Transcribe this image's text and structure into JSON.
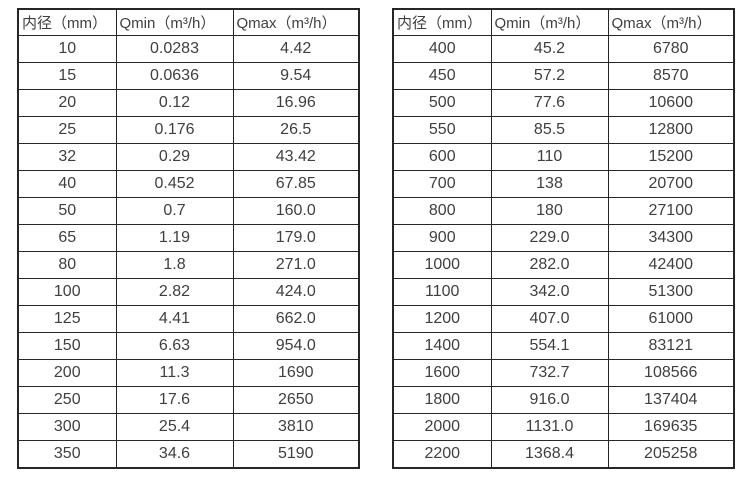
{
  "page": {
    "background": "#ffffff",
    "border_color": "#262626",
    "text_color": "#3f3f3f"
  },
  "tables": [
    {
      "name": "flow-range-small-diameters",
      "headers": [
        "内径（mm）",
        "Qmin（m³/h）",
        "Qmax（m³/h）"
      ],
      "rows": [
        [
          "10",
          "0.0283",
          "4.42"
        ],
        [
          "15",
          "0.0636",
          "9.54"
        ],
        [
          "20",
          "0.12",
          "16.96"
        ],
        [
          "25",
          "0.176",
          "26.5"
        ],
        [
          "32",
          "0.29",
          "43.42"
        ],
        [
          "40",
          "0.452",
          "67.85"
        ],
        [
          "50",
          "0.7",
          "160.0"
        ],
        [
          "65",
          "1.19",
          "179.0"
        ],
        [
          "80",
          "1.8",
          "271.0"
        ],
        [
          "100",
          "2.82",
          "424.0"
        ],
        [
          "125",
          "4.41",
          "662.0"
        ],
        [
          "150",
          "6.63",
          "954.0"
        ],
        [
          "200",
          "11.3",
          "1690"
        ],
        [
          "250",
          "17.6",
          "2650"
        ],
        [
          "300",
          "25.4",
          "3810"
        ],
        [
          "350",
          "34.6",
          "5190"
        ]
      ]
    },
    {
      "name": "flow-range-large-diameters",
      "headers": [
        "内径（mm）",
        "Qmin（m³/h）",
        "Qmax（m³/h）"
      ],
      "rows": [
        [
          "400",
          "45.2",
          "6780"
        ],
        [
          "450",
          "57.2",
          "8570"
        ],
        [
          "500",
          "77.6",
          "10600"
        ],
        [
          "550",
          "85.5",
          "12800"
        ],
        [
          "600",
          "110",
          "15200"
        ],
        [
          "700",
          "138",
          "20700"
        ],
        [
          "800",
          "180",
          "27100"
        ],
        [
          "900",
          "229.0",
          "34300"
        ],
        [
          "1000",
          "282.0",
          "42400"
        ],
        [
          "1100",
          "342.0",
          "51300"
        ],
        [
          "1200",
          "407.0",
          "61000"
        ],
        [
          "1400",
          "554.1",
          "83121"
        ],
        [
          "1600",
          "732.7",
          "108566"
        ],
        [
          "1800",
          "916.0",
          "137404"
        ],
        [
          "2000",
          "1131.0",
          "169635"
        ],
        [
          "2200",
          "1368.4",
          "205258"
        ]
      ]
    }
  ]
}
